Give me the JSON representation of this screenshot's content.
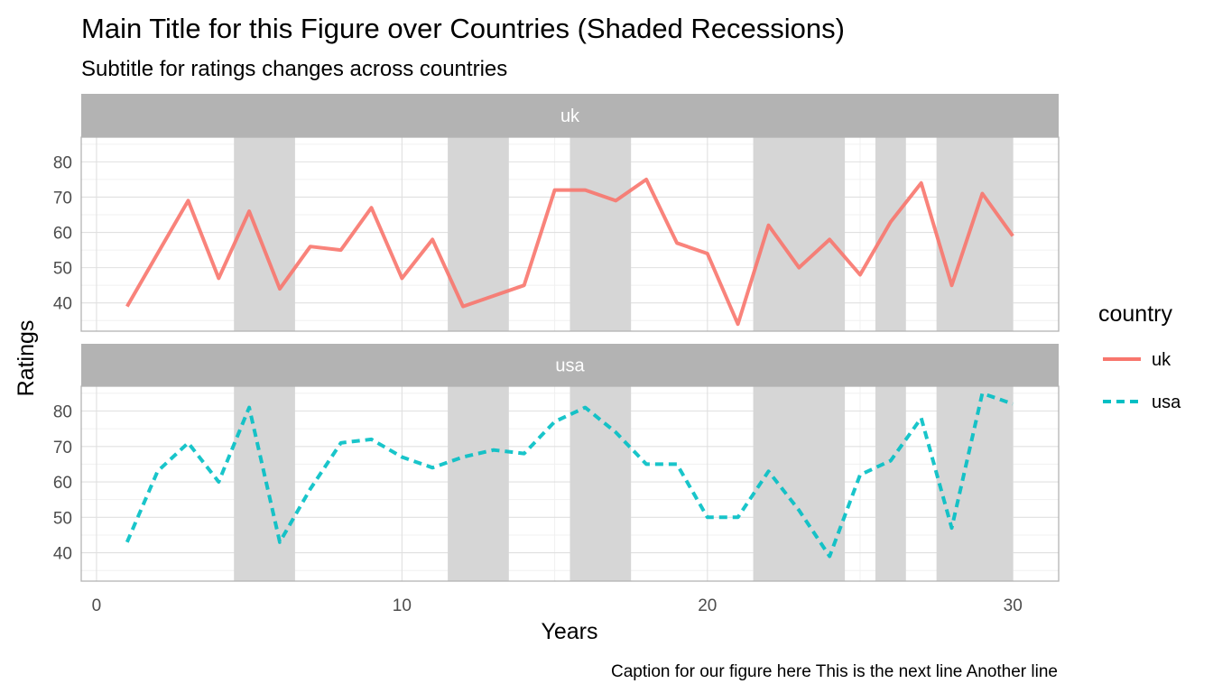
{
  "chart_data": {
    "type": "line",
    "title": "Main Title for this Figure over Countries (Shaded Recessions)",
    "subtitle": "Subtitle for ratings changes across countries",
    "caption": "Caption for our figure here This is the next line Another line",
    "xlabel": "Years",
    "ylabel": "Ratings",
    "xlim": [
      -0.5,
      31.5
    ],
    "ylim": [
      32,
      87
    ],
    "x_ticks": [
      0,
      10,
      20,
      30
    ],
    "y_ticks": [
      40,
      50,
      60,
      70,
      80
    ],
    "grid": true,
    "facets": [
      "uk",
      "usa"
    ],
    "recessions": [
      [
        4.5,
        6.5
      ],
      [
        11.5,
        13.5
      ],
      [
        15.5,
        17.5
      ],
      [
        21.5,
        24.5
      ],
      [
        25.5,
        26.5
      ],
      [
        27.5,
        30
      ]
    ],
    "x": [
      1,
      2,
      3,
      4,
      5,
      6,
      7,
      8,
      9,
      10,
      11,
      12,
      13,
      14,
      15,
      16,
      17,
      18,
      19,
      20,
      21,
      22,
      23,
      24,
      25,
      26,
      27,
      28,
      29,
      30
    ],
    "series": [
      {
        "name": "uk",
        "color": "#F8766D",
        "linetype": "solid",
        "values": [
          39,
          54,
          69,
          47,
          66,
          44,
          56,
          55,
          67,
          47,
          58,
          39,
          42,
          45,
          72,
          72,
          69,
          75,
          57,
          54,
          34,
          62,
          50,
          58,
          48,
          63,
          74,
          45,
          71,
          59
        ]
      },
      {
        "name": "usa",
        "color": "#00BFC4",
        "linetype": "dashed",
        "values": [
          43,
          63,
          71,
          60,
          81,
          43,
          58,
          71,
          72,
          67,
          64,
          67,
          69,
          68,
          77,
          81,
          74,
          65,
          65,
          50,
          50,
          63,
          52,
          39,
          62,
          66,
          78,
          47,
          85,
          82
        ]
      }
    ],
    "legend": {
      "title": "country",
      "position": "right",
      "items": [
        "uk",
        "usa"
      ]
    }
  }
}
